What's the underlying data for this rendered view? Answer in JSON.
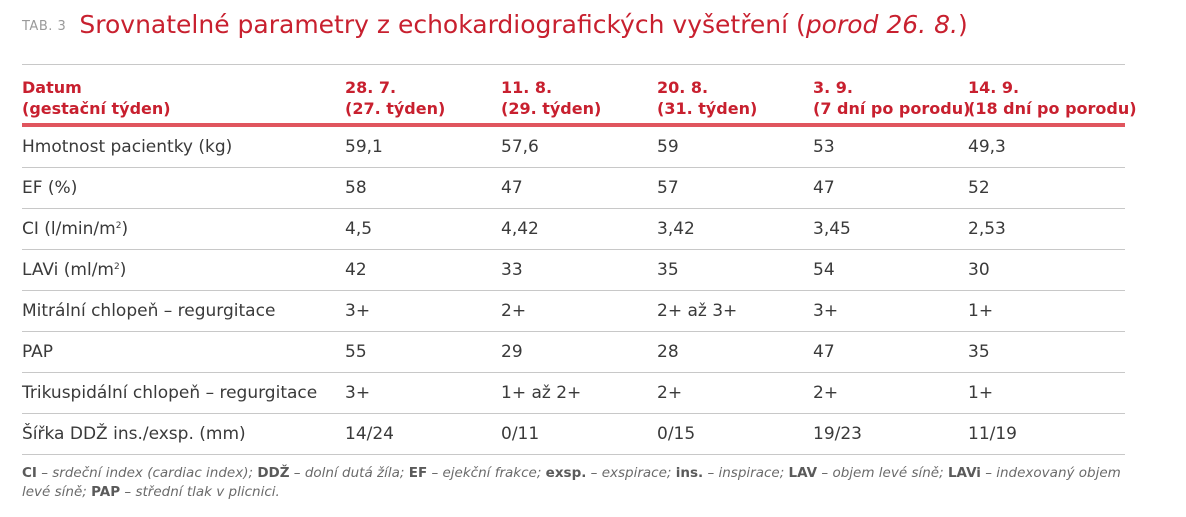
{
  "header": {
    "tab_label": "TAB. 3",
    "title_main": "Srovnatelné parametry z echokardiografických vyšetření ",
    "title_paren_open": "(",
    "title_italic": "porod 26. 8.",
    "title_paren_close": ")"
  },
  "table": {
    "columns": [
      {
        "line1": "Datum",
        "line2": "(gestační týden)"
      },
      {
        "line1": "28. 7.",
        "line2": "(27. týden)"
      },
      {
        "line1": "11. 8.",
        "line2": "(29. týden)"
      },
      {
        "line1": "20. 8.",
        "line2": "(31. týden)"
      },
      {
        "line1": "3. 9.",
        "line2": "(7 dní po porodu)"
      },
      {
        "line1": "14. 9.",
        "line2": "(18 dní po porodu)"
      }
    ],
    "rows": [
      {
        "label": "Hmotnost pacientky (kg)",
        "values": [
          "59,1",
          "57,6",
          "59",
          "53",
          "49,3"
        ]
      },
      {
        "label": "EF (%)",
        "values": [
          "58",
          "47",
          "57",
          "47",
          "52"
        ]
      },
      {
        "label": "CI (l/min/m",
        "label_sup": "2",
        "label_end": ")",
        "values": [
          "4,5",
          "4,42",
          "3,42",
          "3,45",
          "2,53"
        ]
      },
      {
        "label": "LAVi (ml/m",
        "label_sup": "2",
        "label_end": ")",
        "values": [
          "42",
          "33",
          "35",
          "54",
          "30"
        ]
      },
      {
        "label": "Mitrální chlopeň – regurgitace",
        "values": [
          "3+",
          "2+",
          "2+ až 3+",
          "3+",
          "1+"
        ]
      },
      {
        "label": "PAP",
        "values": [
          "55",
          "29",
          "28",
          "47",
          "35"
        ]
      },
      {
        "label": "Trikuspidální chlopeň – regurgitace",
        "values": [
          "3+",
          "1+ až 2+",
          "2+",
          "2+",
          "1+"
        ]
      },
      {
        "label": "Šířka DDŽ ins./exsp. (mm)",
        "values": [
          "14/24",
          "0/11",
          "0/15",
          "19/23",
          "11/19"
        ]
      }
    ]
  },
  "footnote": [
    {
      "abbr": "CI",
      "text": " – srdeční index (cardiac index); "
    },
    {
      "abbr": "DDŽ",
      "text": " – dolní dutá žíla; "
    },
    {
      "abbr": "EF",
      "text": " – ejekční frakce; "
    },
    {
      "abbr": "exsp.",
      "text": " – exspirace; "
    },
    {
      "abbr": "ins.",
      "text": " – inspirace; "
    },
    {
      "abbr": "LAV",
      "text": " – objem levé síně; "
    },
    {
      "abbr": "LAVi",
      "text": " – indexovaný objem levé síně; "
    },
    {
      "abbr": "PAP",
      "text": " – střední tlak v plicnici."
    }
  ]
}
